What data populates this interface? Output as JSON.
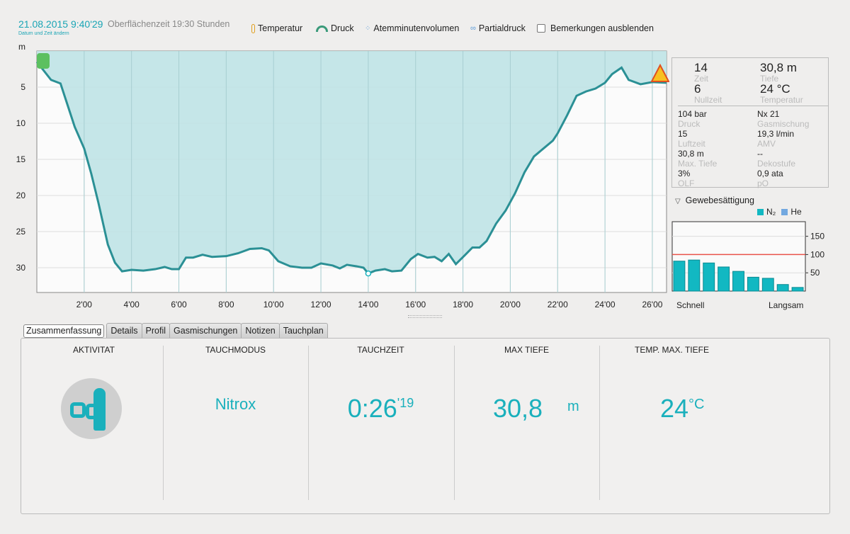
{
  "header": {
    "datetime": "21.08.2015 9:40'29",
    "change_date": "Datum und Zeit ändern",
    "surface_time": "Oberflächenzeit 19:30 Stunden"
  },
  "toggles": [
    {
      "label": "Temperatur",
      "icon": "thermometer-icon"
    },
    {
      "label": "Druck",
      "icon": "gauge-icon"
    },
    {
      "label": "Atemminutenvolumen",
      "icon": "bubbles-icon"
    },
    {
      "label": "Partialdruck",
      "icon": "partial-pressure-icon"
    }
  ],
  "hide_notes": {
    "label": "Bemerkungen ausblenden",
    "checked": false
  },
  "colors": {
    "accent": "#1ab0bc",
    "fill": "#bfe3e6",
    "line": "#2b9095",
    "limit": "#e8534a"
  },
  "chart_data": {
    "type": "area",
    "ylabel": "m",
    "ylim": [
      0,
      33.5
    ],
    "xlim": [
      0,
      26.6
    ],
    "yticks": [
      5,
      10,
      15,
      20,
      25,
      30
    ],
    "xticks": [
      2,
      4,
      6,
      8,
      10,
      12,
      14,
      16,
      18,
      20,
      22,
      24,
      26
    ],
    "xtick_labels": [
      "2'00",
      "4'00",
      "6'00",
      "8'00",
      "10'00",
      "12'00",
      "14'00",
      "16'00",
      "18'00",
      "20'00",
      "22'00",
      "24'00",
      "26'00"
    ],
    "ytick_labels": [
      "5",
      "10",
      "15",
      "20",
      "25",
      "30"
    ],
    "marker": {
      "time": 14,
      "depth": 30.8
    },
    "points": [
      [
        0,
        1.5
      ],
      [
        0.6,
        4
      ],
      [
        1,
        4.5
      ],
      [
        1.3,
        7.5
      ],
      [
        1.6,
        10.5
      ],
      [
        2,
        13.5
      ],
      [
        2.3,
        17
      ],
      [
        2.6,
        21
      ],
      [
        3,
        26.8
      ],
      [
        3.3,
        29.3
      ],
      [
        3.6,
        30.5
      ],
      [
        4,
        30.3
      ],
      [
        4.5,
        30.4
      ],
      [
        5,
        30.2
      ],
      [
        5.4,
        29.9
      ],
      [
        5.7,
        30.2
      ],
      [
        6,
        30.2
      ],
      [
        6.3,
        28.6
      ],
      [
        6.6,
        28.6
      ],
      [
        7,
        28.2
      ],
      [
        7.4,
        28.5
      ],
      [
        8,
        28.4
      ],
      [
        8.5,
        28
      ],
      [
        9,
        27.4
      ],
      [
        9.5,
        27.3
      ],
      [
        9.8,
        27.6
      ],
      [
        10.2,
        29.1
      ],
      [
        10.7,
        29.8
      ],
      [
        11.2,
        30
      ],
      [
        11.6,
        30
      ],
      [
        12,
        29.4
      ],
      [
        12.5,
        29.7
      ],
      [
        12.8,
        30.1
      ],
      [
        13.1,
        29.6
      ],
      [
        13.5,
        29.8
      ],
      [
        13.8,
        30
      ],
      [
        14,
        30.8
      ],
      [
        14.3,
        30.4
      ],
      [
        14.7,
        30.2
      ],
      [
        15,
        30.5
      ],
      [
        15.4,
        30.4
      ],
      [
        15.8,
        28.8
      ],
      [
        16.1,
        28.1
      ],
      [
        16.5,
        28.6
      ],
      [
        16.8,
        28.5
      ],
      [
        17.1,
        29.1
      ],
      [
        17.4,
        28.1
      ],
      [
        17.7,
        29.5
      ],
      [
        18.1,
        28.2
      ],
      [
        18.4,
        27.2
      ],
      [
        18.7,
        27.2
      ],
      [
        19,
        26.3
      ],
      [
        19.4,
        23.9
      ],
      [
        19.8,
        22.1
      ],
      [
        20.2,
        19.7
      ],
      [
        20.6,
        16.8
      ],
      [
        21,
        14.6
      ],
      [
        21.4,
        13.5
      ],
      [
        21.8,
        12.4
      ],
      [
        22,
        11.4
      ],
      [
        22.4,
        8.9
      ],
      [
        22.8,
        6.2
      ],
      [
        23.2,
        5.6
      ],
      [
        23.6,
        5.2
      ],
      [
        24,
        4.4
      ],
      [
        24.3,
        3.2
      ],
      [
        24.7,
        2.3
      ],
      [
        25,
        4
      ],
      [
        25.5,
        4.6
      ],
      [
        26,
        4.3
      ],
      [
        26.6,
        4.4
      ]
    ]
  },
  "info": {
    "time": "14",
    "time_label": "Zeit",
    "depth": "30,8 m",
    "depth_label": "Tiefe",
    "ndl": "6",
    "ndl_label": "Nullzeit",
    "temp": "24 °C",
    "temp_label": "Temperatur",
    "rows": [
      [
        "104 bar",
        "Druck",
        "Nx 21",
        "Gasmischung"
      ],
      [
        "15",
        "Luftzeit",
        "19,3 l/min",
        "AMV"
      ],
      [
        "30,8 m",
        "Max. Tiefe",
        "--",
        "Dekostufe"
      ],
      [
        "3%",
        "OLF",
        "0,9 ata",
        "pO"
      ]
    ]
  },
  "tissue": {
    "title": "Gewebesättigung",
    "legend_n2": "N₂",
    "legend_he": "He",
    "fast": "Schnell",
    "slow": "Langsam",
    "yticks": [
      "50",
      "100",
      "150"
    ],
    "limit": 100,
    "values": [
      82,
      85,
      77,
      66,
      54,
      38,
      35,
      18,
      10
    ],
    "ymax": 190
  },
  "tabs": [
    "Zusammenfassung",
    "Details",
    "Profil",
    "Gasmischungen",
    "Notizen",
    "Tauchplan"
  ],
  "summary": {
    "activity": "AKTIVITAT",
    "mode_label": "TAUCHMODUS",
    "mode": "Nitrox",
    "time_label": "TAUCHZEIT",
    "time_main": "0:26",
    "time_sec": "'19",
    "depth_label": "MAX TIEFE",
    "depth": "30,8",
    "depth_unit": "m",
    "temp_label": "TEMP. MAX. TIEFE",
    "temp": "24",
    "temp_unit": "°C"
  }
}
